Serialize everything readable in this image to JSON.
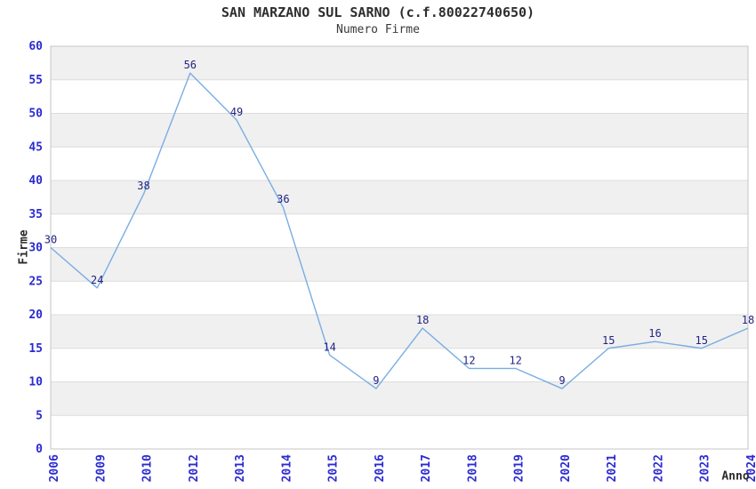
{
  "chart_data": {
    "type": "line",
    "title": "SAN MARZANO SUL SARNO (c.f.80022740650)",
    "subtitle": "Numero Firme",
    "xlabel": "Anno",
    "ylabel": "Firme",
    "categories": [
      "2006",
      "2009",
      "2010",
      "2012",
      "2013",
      "2014",
      "2015",
      "2016",
      "2017",
      "2018",
      "2019",
      "2020",
      "2021",
      "2022",
      "2023",
      "2024"
    ],
    "values": [
      30,
      24,
      38,
      56,
      49,
      36,
      14,
      9,
      18,
      12,
      12,
      9,
      15,
      16,
      15,
      18
    ],
    "point_labels": [
      "30",
      "24",
      "38",
      "56",
      "49",
      "36",
      "14",
      "9",
      "18",
      "12",
      "12",
      "9",
      "15",
      "16",
      "15",
      "18"
    ],
    "ylim": [
      0,
      60
    ],
    "ytick_step": 5,
    "ytick_labels": [
      "0",
      "5",
      "10",
      "15",
      "20",
      "25",
      "30",
      "35",
      "40",
      "45",
      "50",
      "55",
      "60"
    ],
    "grid": true,
    "legend": "none",
    "band_fill": "alternating-horizontal",
    "colors": {
      "line": "#79ade2",
      "point_label": "#232383",
      "tick_label": "#2b2bd2",
      "band": "#f0f0f0",
      "gridline": "#dcdcdc",
      "axis_border": "#c6c6c6",
      "title": "#2e2e2e",
      "subtitle": "#3a3a3a",
      "axis_title": "#2b2b2b",
      "background": "#ffffff"
    }
  }
}
